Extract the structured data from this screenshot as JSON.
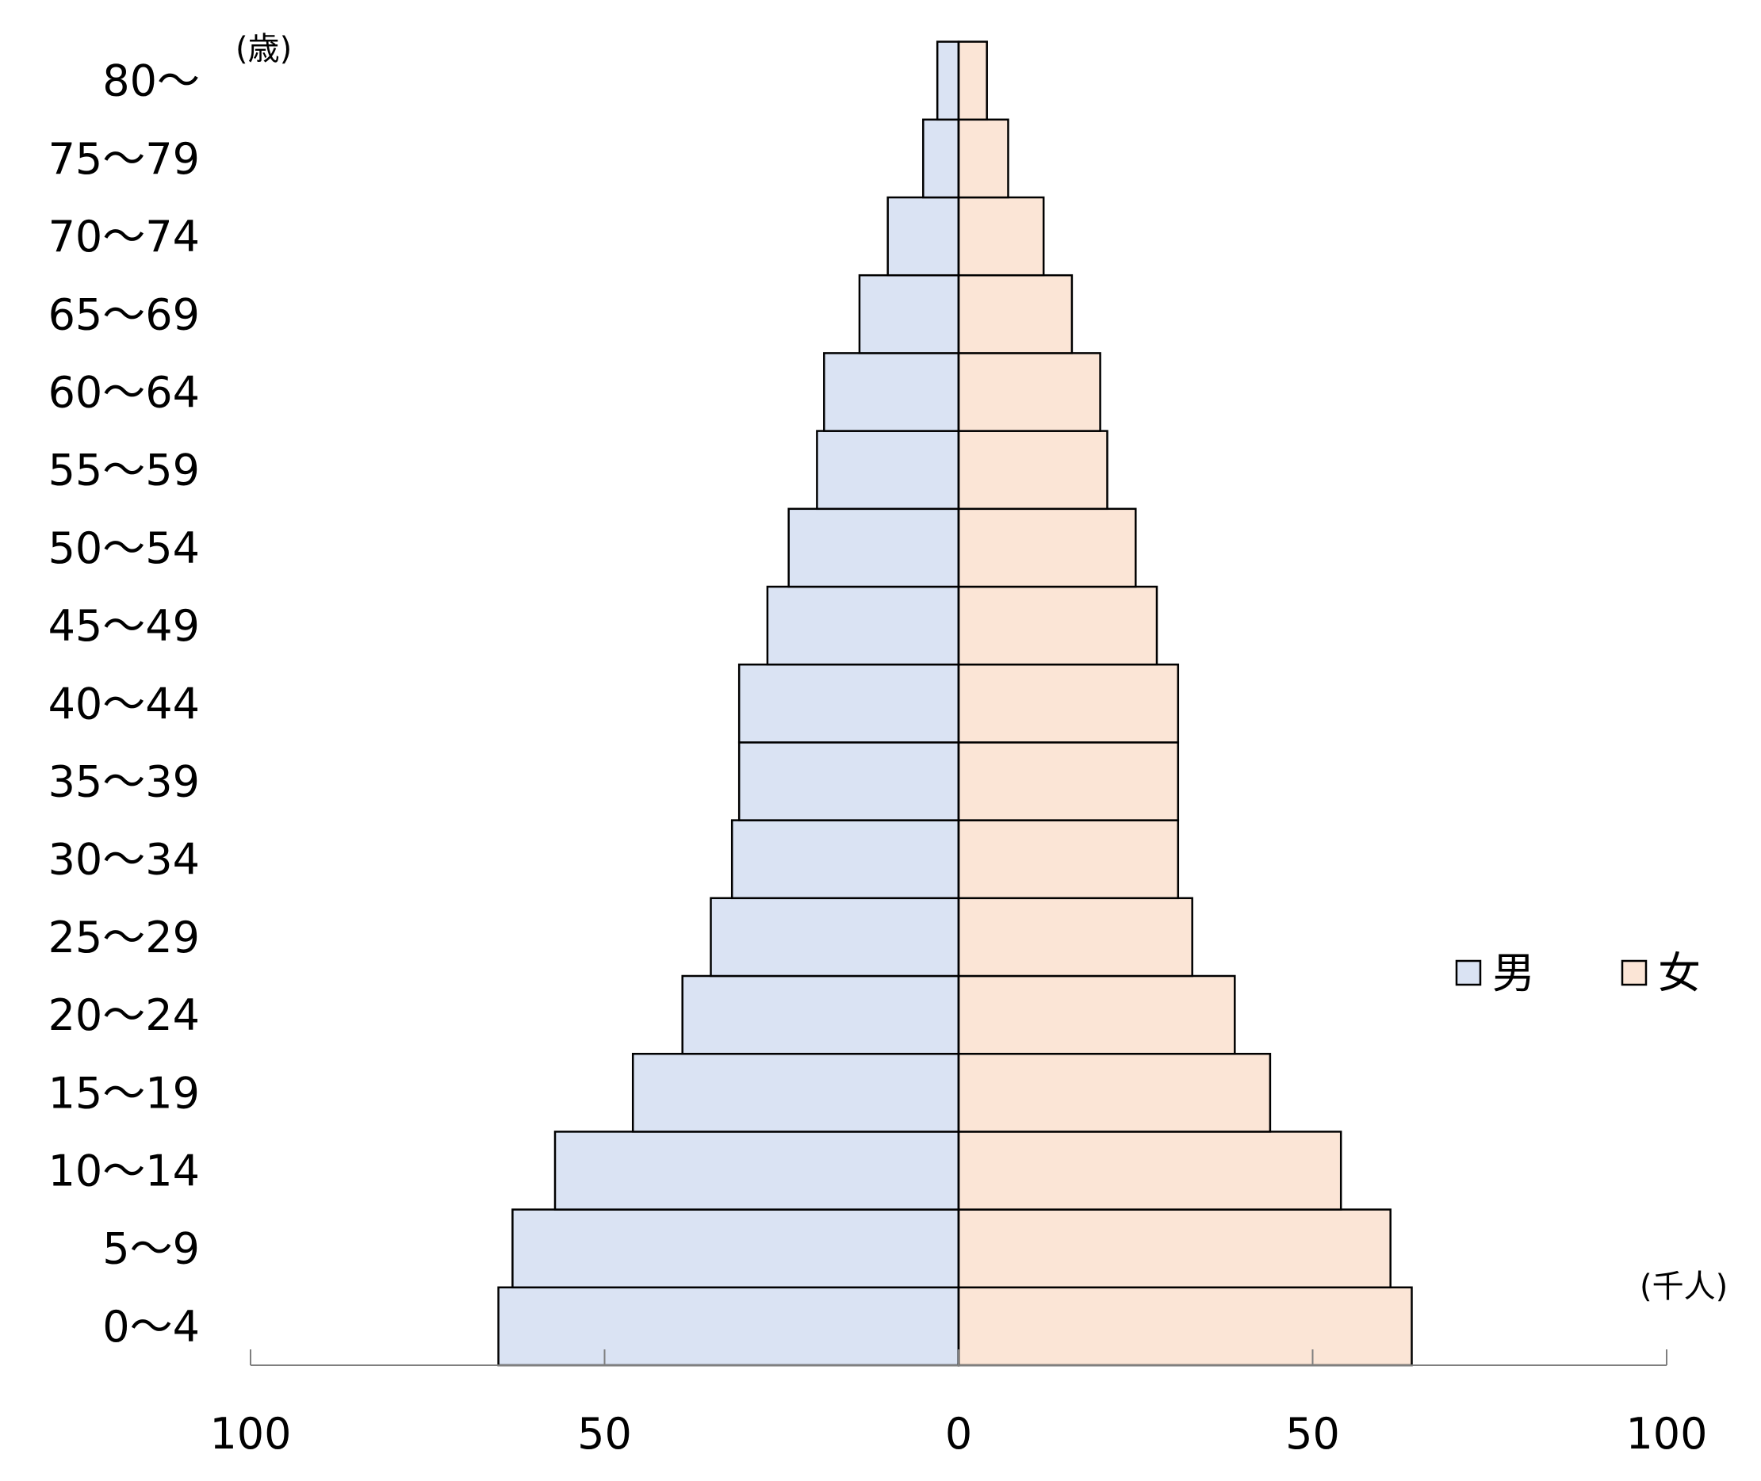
{
  "chart_data": {
    "type": "bar",
    "orientation": "population-pyramid",
    "categories": [
      "0〜4",
      "5〜9",
      "10〜14",
      "15〜19",
      "20〜24",
      "25〜29",
      "30〜34",
      "35〜39",
      "40〜44",
      "45〜49",
      "50〜54",
      "55〜59",
      "60〜64",
      "65〜69",
      "70〜74",
      "75〜79",
      "80〜"
    ],
    "series": [
      {
        "name": "男",
        "side": "left",
        "color": "#dae3f3",
        "values": [
          65,
          63,
          57,
          46,
          39,
          35,
          32,
          31,
          31,
          27,
          24,
          20,
          19,
          14,
          10,
          5,
          3
        ]
      },
      {
        "name": "女",
        "side": "right",
        "color": "#fbe5d6",
        "values": [
          64,
          61,
          54,
          44,
          39,
          33,
          31,
          31,
          31,
          28,
          25,
          21,
          20,
          16,
          12,
          7,
          4
        ]
      }
    ],
    "x_ticks": [
      {
        "label": "100",
        "value": -100
      },
      {
        "label": "50",
        "value": -50
      },
      {
        "label": "0",
        "value": 0
      },
      {
        "label": "50",
        "value": 50
      },
      {
        "label": "100",
        "value": 100
      }
    ],
    "xlim": [
      -100,
      100
    ],
    "y_unit_label": "(歳)",
    "x_unit_label": "(千人)",
    "grid": false,
    "legend_position": "right",
    "bar_border_color": "#000000",
    "axis_color": "#7f7f7f"
  }
}
